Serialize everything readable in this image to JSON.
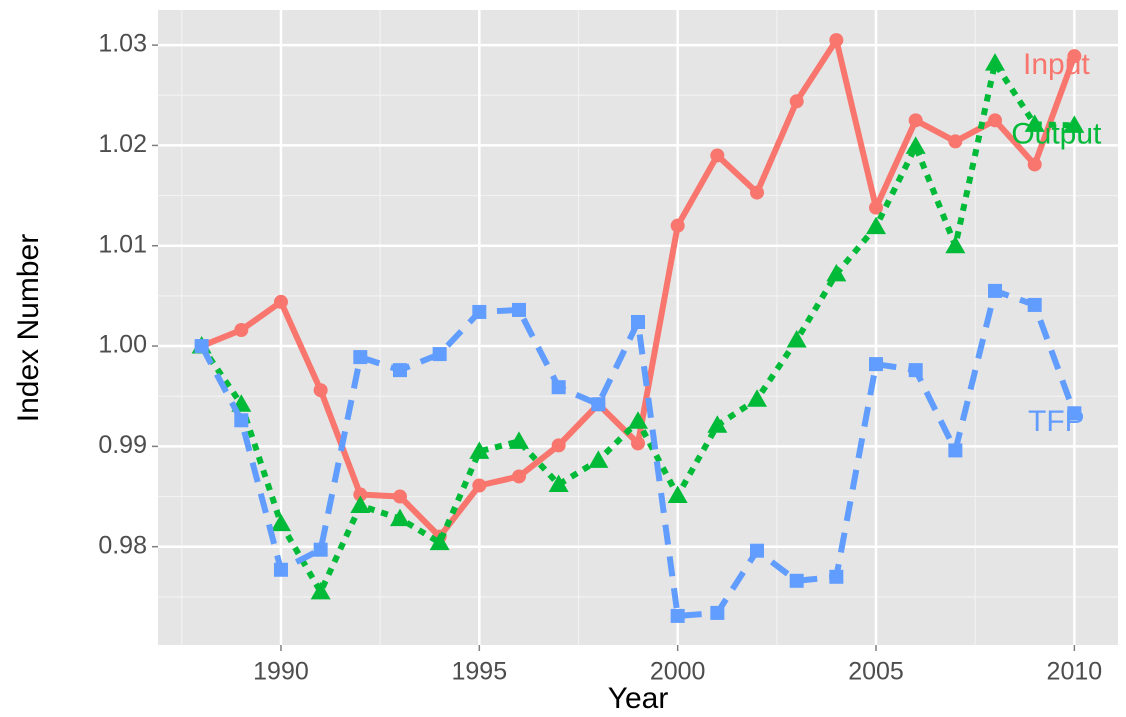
{
  "chart_data": {
    "type": "line",
    "xlabel": "Year",
    "ylabel": "Index Number",
    "x": [
      1988,
      1989,
      1990,
      1991,
      1992,
      1993,
      1994,
      1995,
      1996,
      1997,
      1998,
      1999,
      2000,
      2001,
      2002,
      2003,
      2004,
      2005,
      2006,
      2007,
      2008,
      2009,
      2010
    ],
    "series": [
      {
        "name": "Input",
        "color": "#F8766D",
        "marker": "circle",
        "linestyle": "solid",
        "values": [
          1.0,
          1.0016,
          1.0044,
          0.9956,
          0.9852,
          0.985,
          0.981,
          0.9861,
          0.987,
          0.9901,
          0.9942,
          0.9903,
          1.012,
          1.019,
          1.0153,
          1.0244,
          1.0305,
          1.0138,
          1.0225,
          1.0204,
          1.0225,
          1.0181,
          1.0289
        ]
      },
      {
        "name": "Output",
        "color": "#00BA38",
        "marker": "triangle",
        "linestyle": "dotted",
        "values": [
          1.0,
          0.9942,
          0.9823,
          0.9755,
          0.9841,
          0.9828,
          0.9804,
          0.9895,
          0.9905,
          0.9862,
          0.9886,
          0.9925,
          0.9851,
          0.9921,
          0.9947,
          1.0006,
          1.0072,
          1.0119,
          1.0199,
          1.01,
          1.0282,
          1.0221,
          1.022
        ]
      },
      {
        "name": "TFP",
        "color": "#619CFF",
        "marker": "square",
        "linestyle": "dashed",
        "values": [
          1.0,
          0.9926,
          0.9777,
          0.9797,
          0.9989,
          0.9976,
          0.9992,
          1.0034,
          1.0036,
          0.9959,
          0.9942,
          1.0024,
          0.9731,
          0.9734,
          0.9796,
          0.9766,
          0.977,
          0.9982,
          0.9976,
          0.9896,
          1.0055,
          1.0041,
          0.9933
        ]
      }
    ],
    "xlim": [
      1986.9,
      2011.1
    ],
    "xticks": [
      1990,
      1995,
      2000,
      2005,
      2010
    ],
    "ylim": [
      0.9702,
      1.0335
    ],
    "yticks": [
      0.98,
      0.99,
      {
        "value": 1,
        "label": "1.00"
      },
      1.01,
      1.02,
      1.03
    ],
    "grid": true
  }
}
